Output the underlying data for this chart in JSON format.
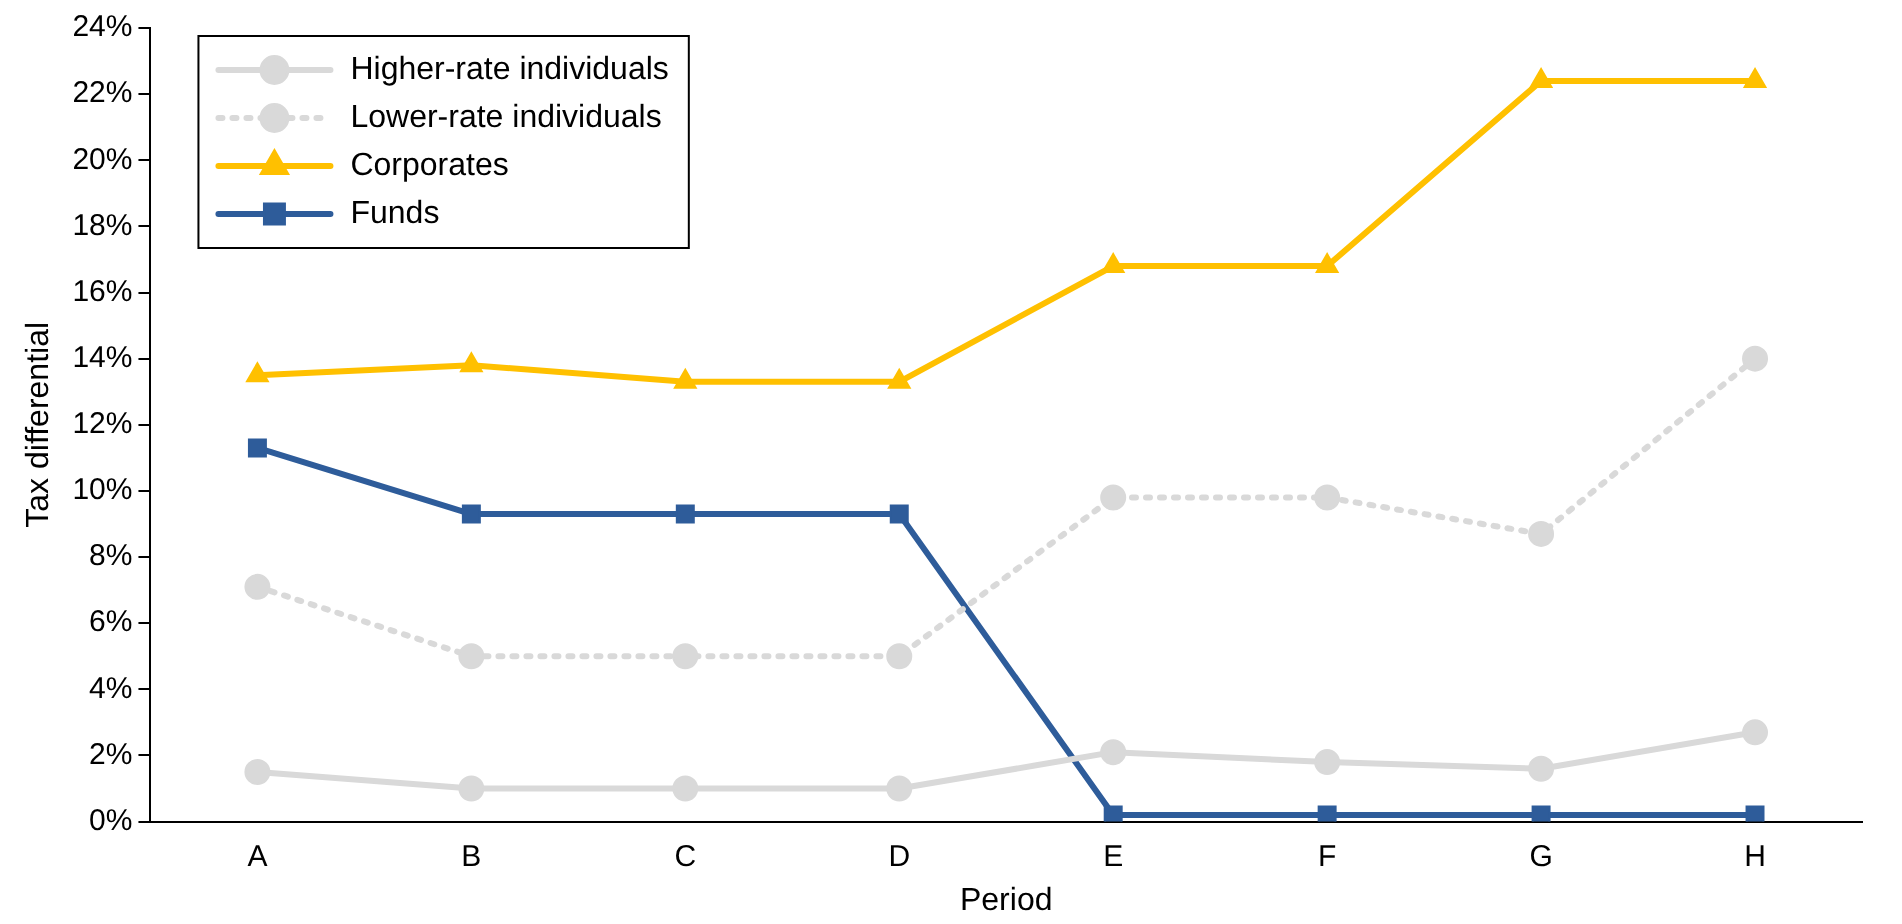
{
  "chart_data": {
    "type": "line",
    "xlabel": "Period",
    "ylabel": "Tax differential",
    "categories": [
      "A",
      "B",
      "C",
      "D",
      "E",
      "F",
      "G",
      "H"
    ],
    "ylim": [
      0,
      24
    ],
    "yticks": [
      {
        "value": 0,
        "label": "0%"
      },
      {
        "value": 2,
        "label": "2%"
      },
      {
        "value": 4,
        "label": "4%"
      },
      {
        "value": 6,
        "label": "6%"
      },
      {
        "value": 8,
        "label": "8%"
      },
      {
        "value": 10,
        "label": "10%"
      },
      {
        "value": 12,
        "label": "12%"
      },
      {
        "value": 14,
        "label": "14%"
      },
      {
        "value": 16,
        "label": "16%"
      },
      {
        "value": 18,
        "label": "18%"
      },
      {
        "value": 20,
        "label": "20%"
      },
      {
        "value": 22,
        "label": "22%"
      },
      {
        "value": 24,
        "label": "24%"
      }
    ],
    "grid": false,
    "legend": "top left",
    "series": [
      {
        "name": "Higher-rate individuals",
        "color": "#d9d9d9",
        "marker": "circle",
        "line_style": "solid",
        "values": [
          1.5,
          1.0,
          1.0,
          1.0,
          2.1,
          1.8,
          1.6,
          2.7
        ]
      },
      {
        "name": "Lower-rate individuals",
        "color": "#d9d9d9",
        "marker": "circle",
        "line_style": "dotted",
        "values": [
          7.1,
          5.0,
          5.0,
          5.0,
          9.8,
          9.8,
          8.7,
          14.0
        ]
      },
      {
        "name": "Corporates",
        "color": "#ffc000",
        "marker": "triangle",
        "line_style": "solid",
        "values": [
          13.5,
          13.8,
          13.3,
          13.3,
          16.8,
          16.8,
          22.4,
          22.4
        ]
      },
      {
        "name": "Funds",
        "color": "#2e5c9a",
        "marker": "square",
        "line_style": "solid",
        "values": [
          11.3,
          9.3,
          9.3,
          9.3,
          0.2,
          0.2,
          0.2,
          0.2
        ]
      }
    ]
  }
}
